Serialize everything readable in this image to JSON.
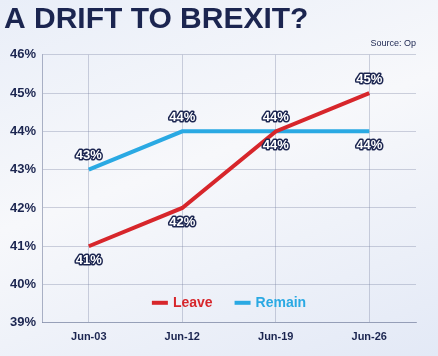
{
  "chart_data": {
    "type": "line",
    "title": "A DRIFT TO BREXIT?",
    "subtitle": "Source: Op",
    "categories": [
      "Jun-03",
      "Jun-12",
      "Jun-19",
      "Jun-26"
    ],
    "series": [
      {
        "name": "Leave",
        "color": "#d7262b",
        "values": [
          41,
          42,
          44,
          45
        ],
        "value_labels": [
          "41%",
          "42%",
          "44%",
          "45%"
        ]
      },
      {
        "name": "Remain",
        "color": "#2aa9e3",
        "values": [
          43,
          44,
          44,
          44
        ],
        "value_labels": [
          "43%",
          "44%",
          "44%",
          "44%"
        ]
      }
    ],
    "ylim": [
      39,
      46
    ],
    "yticks": [
      {
        "value": 39,
        "label": "39%"
      },
      {
        "value": 40,
        "label": "40%"
      },
      {
        "value": 41,
        "label": "41%"
      },
      {
        "value": 42,
        "label": "42%"
      },
      {
        "value": 43,
        "label": "43%"
      },
      {
        "value": 44,
        "label": "44%"
      },
      {
        "value": 45,
        "label": "45%"
      },
      {
        "value": 46,
        "label": "46%"
      }
    ],
    "grid": true,
    "legend": "bottom",
    "data_labels": true
  }
}
